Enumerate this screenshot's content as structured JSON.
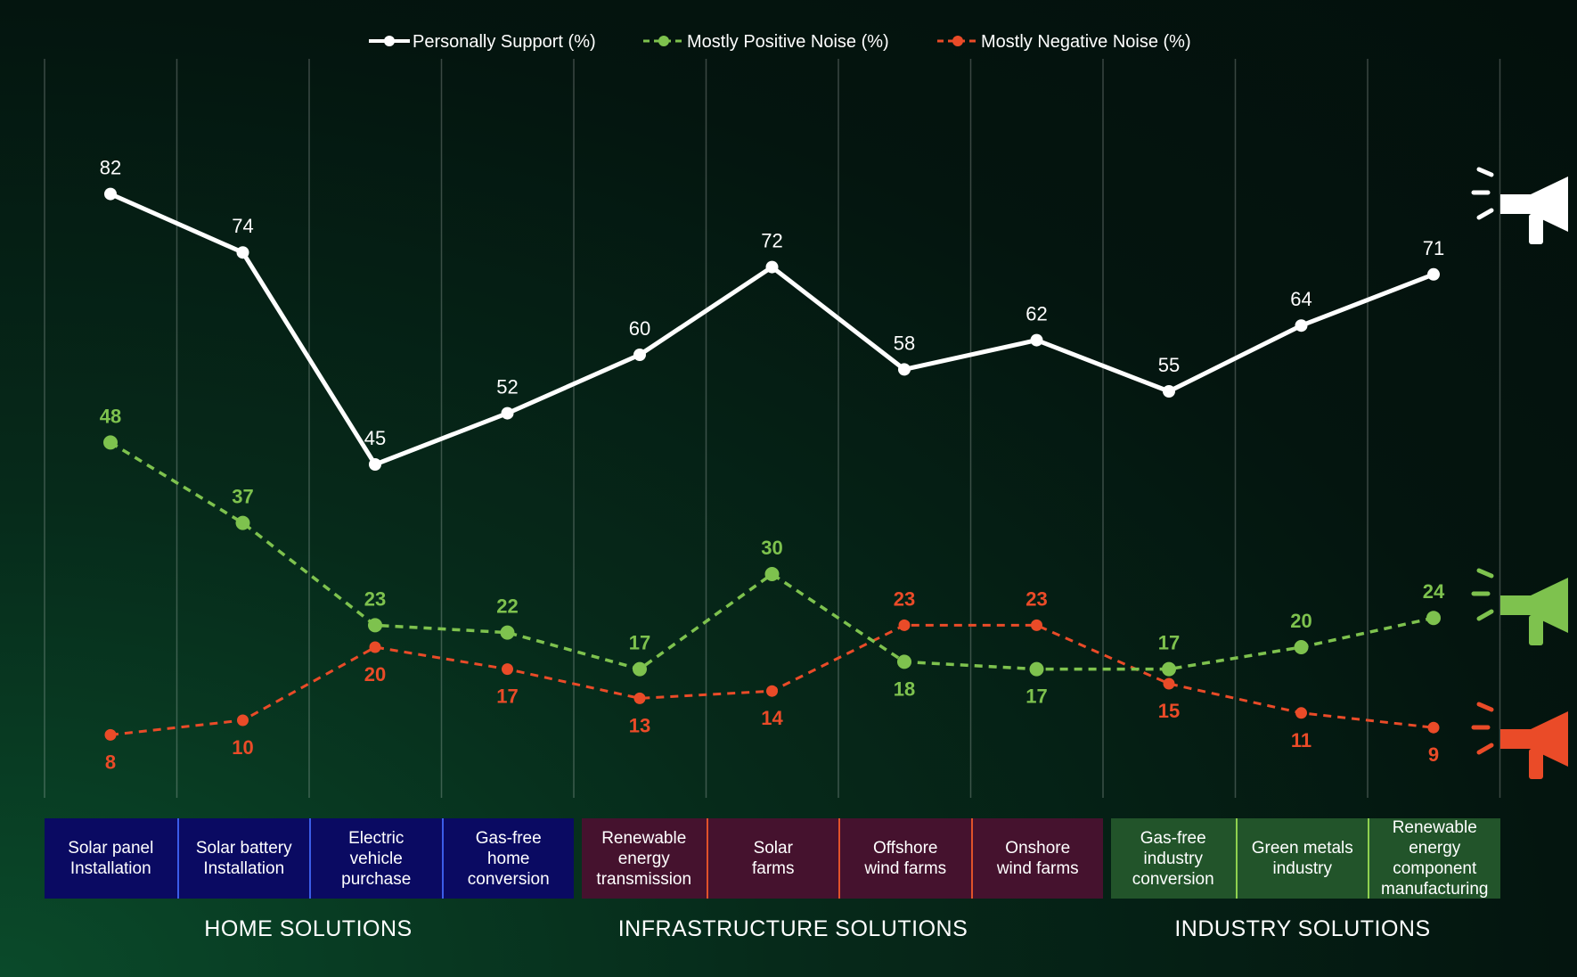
{
  "legend": {
    "support": "Personally Support (%)",
    "positive": "Mostly Positive Noise (%)",
    "negative": "Mostly Negative Noise (%)"
  },
  "colors": {
    "support": "#ffffff",
    "positive": "#7ec24e",
    "negative": "#ea4b28",
    "home_box": "#0a0a62",
    "infra_box": "#45122e",
    "industry_box": "#22542a"
  },
  "groups": {
    "home": "HOME SOLUTIONS",
    "infrastructure": "INFRASTRUCTURE SOLUTIONS",
    "industry": "INDUSTRY SOLUTIONS"
  },
  "categories": [
    {
      "label": "Solar panel\nInstallation",
      "group": "home"
    },
    {
      "label": "Solar battery\nInstallation",
      "group": "home"
    },
    {
      "label": "Electric\nvehicle\npurchase",
      "group": "home"
    },
    {
      "label": "Gas-free\nhome\nconversion",
      "group": "home"
    },
    {
      "label": "Renewable\nenergy\ntransmission",
      "group": "infrastructure"
    },
    {
      "label": "Solar\nfarms",
      "group": "infrastructure"
    },
    {
      "label": "Offshore\nwind farms",
      "group": "infrastructure"
    },
    {
      "label": "Onshore\nwind farms",
      "group": "infrastructure"
    },
    {
      "label": "Gas-free\nindustry\nconversion",
      "group": "industry"
    },
    {
      "label": "Green metals\nindustry",
      "group": "industry"
    },
    {
      "label": "Renewable\nenergy\ncomponent\nmanufacturing",
      "group": "industry"
    }
  ],
  "chart_data": {
    "type": "line",
    "categories": [
      "Solar panel Installation",
      "Solar battery Installation",
      "Electric vehicle purchase",
      "Gas-free home conversion",
      "Renewable energy transmission",
      "Solar farms",
      "Offshore wind farms",
      "Onshore wind farms",
      "Gas-free industry conversion",
      "Green metals industry",
      "Renewable energy component manufacturing"
    ],
    "series": [
      {
        "name": "Personally Support (%)",
        "values": [
          82,
          74,
          45,
          52,
          60,
          72,
          58,
          62,
          55,
          64,
          71
        ]
      },
      {
        "name": "Mostly Positive Noise (%)",
        "values": [
          48,
          37,
          23,
          22,
          17,
          30,
          18,
          17,
          17,
          20,
          24
        ]
      },
      {
        "name": "Mostly Negative Noise (%)",
        "values": [
          8,
          10,
          20,
          17,
          13,
          14,
          23,
          23,
          15,
          11,
          9
        ]
      }
    ],
    "ylim": [
      0,
      100
    ],
    "grid": "vertical",
    "legend": "top-center"
  }
}
